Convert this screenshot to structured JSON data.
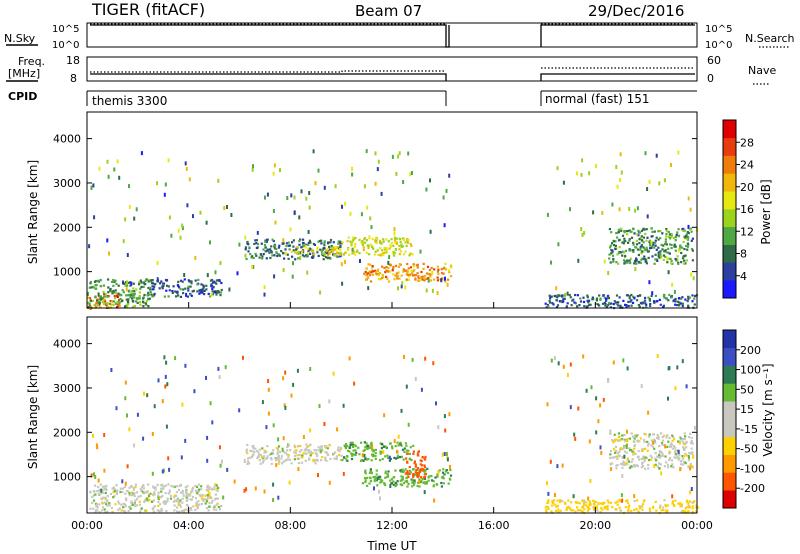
{
  "header": {
    "station": "TIGER (fitACF)",
    "beam": "Beam 07",
    "date": "29/Dec/2016"
  },
  "top_panels": {
    "nsky_label": "N.Sky",
    "nsky_ticks": [
      "10^5",
      "10^0"
    ],
    "nsearch_label": "N.Search",
    "nsearch_ticks": [
      "10^5",
      "10^0"
    ],
    "freq_label": "Freq.",
    "freq_unit": "[MHz]",
    "freq_ticks": [
      "18",
      "8"
    ],
    "nave_label": "Nave",
    "nave_ticks": [
      "60",
      "0"
    ],
    "cpid_label": "CPID",
    "cpid_modes": [
      "themis 3300",
      "normal (fast) 151"
    ]
  },
  "colorbars": {
    "power": {
      "label": "Power [dB]",
      "ticks": [
        "28",
        "24",
        "20",
        "16",
        "12",
        "8",
        "4"
      ],
      "colors": [
        "#1a1aff",
        "#2a3f9e",
        "#2e6b46",
        "#4ea844",
        "#9bd31d",
        "#e8e811",
        "#f0b80a",
        "#f07c0a",
        "#e83c0c",
        "#e00000"
      ]
    },
    "velocity": {
      "label": "Velocity [m s⁻¹]",
      "ticks": [
        "200",
        "100",
        "50",
        "15",
        "-15",
        "-50",
        "-100",
        "-200"
      ],
      "colors": [
        "#2233aa",
        "#3b4fc2",
        "#2e7a52",
        "#66bb33",
        "#c8c8c0",
        "#c8c8c0",
        "#ffd000",
        "#ff9900",
        "#ff5500",
        "#dd0000"
      ]
    }
  },
  "chart_data": [
    {
      "type": "heatmap",
      "title": "",
      "ylabel": "Slant Range [km]",
      "ylim": [
        180,
        4600
      ],
      "yticks": [
        1000,
        2000,
        3000,
        4000
      ],
      "quantity": "Power [dB]",
      "clim": [
        0,
        30
      ],
      "regions": [
        {
          "t": [
            0.0,
            1.3
          ],
          "r": [
            180,
            520
          ],
          "v": 24
        },
        {
          "t": [
            0.0,
            2.5
          ],
          "r": [
            220,
            850
          ],
          "v": 10
        },
        {
          "t": [
            2.5,
            5.3
          ],
          "r": [
            450,
            850
          ],
          "v": 6
        },
        {
          "t": [
            6.2,
            10.0
          ],
          "r": [
            1300,
            1750
          ],
          "v": 7
        },
        {
          "t": [
            8.0,
            10.0
          ],
          "r": [
            1380,
            1580
          ],
          "v": 16
        },
        {
          "t": [
            10.0,
            12.8
          ],
          "r": [
            1380,
            1800
          ],
          "v": 16
        },
        {
          "t": [
            10.8,
            14.3
          ],
          "r": [
            800,
            1200
          ],
          "v": 21
        },
        {
          "t": [
            18.0,
            24.0
          ],
          "r": [
            200,
            500
          ],
          "v": 6
        },
        {
          "t": [
            20.5,
            23.8
          ],
          "r": [
            1200,
            2000
          ],
          "v": 9
        }
      ]
    },
    {
      "type": "heatmap",
      "title": "",
      "xlabel": "Time UT",
      "ylabel": "Slant Range [km]",
      "ylim": [
        180,
        4600
      ],
      "yticks": [
        1000,
        2000,
        3000,
        4000
      ],
      "xticks": [
        "00:00",
        "04:00",
        "08:00",
        "12:00",
        "16:00",
        "20:00",
        "00:00"
      ],
      "xlim_hours": [
        0,
        24
      ],
      "quantity": "Velocity [m s⁻¹]",
      "regions": [
        {
          "t": [
            0.0,
            5.3
          ],
          "r": [
            220,
            850
          ],
          "v": 0
        },
        {
          "t": [
            6.2,
            10.0
          ],
          "r": [
            1300,
            1750
          ],
          "v": 0
        },
        {
          "t": [
            10.0,
            12.8
          ],
          "r": [
            1380,
            1800
          ],
          "v": 40
        },
        {
          "t": [
            10.8,
            14.3
          ],
          "r": [
            800,
            1200
          ],
          "v": 40
        },
        {
          "t": [
            12.5,
            13.3
          ],
          "r": [
            1000,
            1600
          ],
          "v": -150
        },
        {
          "t": [
            18.0,
            24.0
          ],
          "r": [
            200,
            500
          ],
          "v": -30
        },
        {
          "t": [
            20.5,
            23.8
          ],
          "r": [
            1200,
            2000
          ],
          "v": 0
        }
      ]
    }
  ]
}
